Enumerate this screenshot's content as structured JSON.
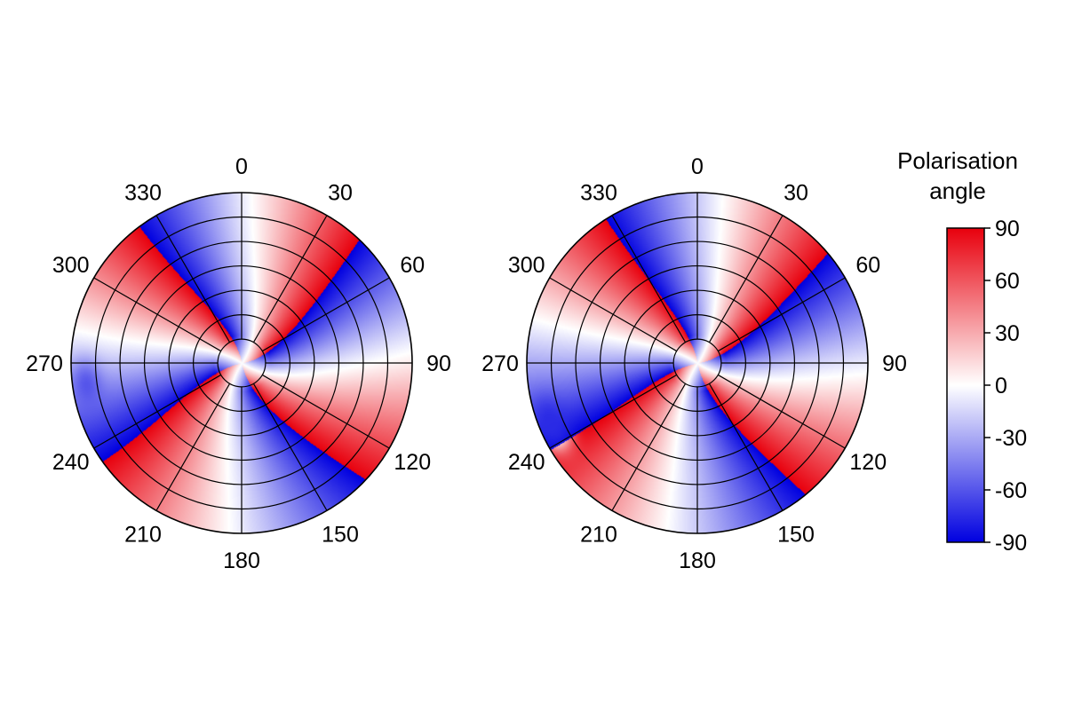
{
  "chart_data": {
    "type": "polar heatmap",
    "angular_tick_labels": [
      "0",
      "30",
      "60",
      "90",
      "120",
      "150",
      "180",
      "210",
      "240",
      "270",
      "300",
      "330"
    ],
    "radial_rings": 6,
    "colorbar": {
      "title_line1": "Polarisation",
      "title_line2": "angle",
      "ticks": [
        "90",
        "60",
        "30",
        "0",
        "-30",
        "-60",
        "-90"
      ],
      "range": [
        -90,
        90
      ],
      "colors": {
        "max": "#e8000d",
        "mid": "#ffffff",
        "min": "#0000e0"
      }
    },
    "panels": [
      {
        "name": "left",
        "field": {
          "base_offset_deg": 20,
          "swirl_twist": 0.55,
          "edge_bend_deg": 15,
          "outer_patch": {
            "theta_deg": 262,
            "radius_fraction": 0.92,
            "level": -60
          }
        }
      },
      {
        "name": "right",
        "field": {
          "base_offset_deg": 20,
          "swirl_twist": 0.45,
          "edge_bend_deg": 12,
          "outer_patch": {
            "theta_deg": 248,
            "radius_fraction": 0.93,
            "level": -75
          }
        }
      }
    ]
  }
}
